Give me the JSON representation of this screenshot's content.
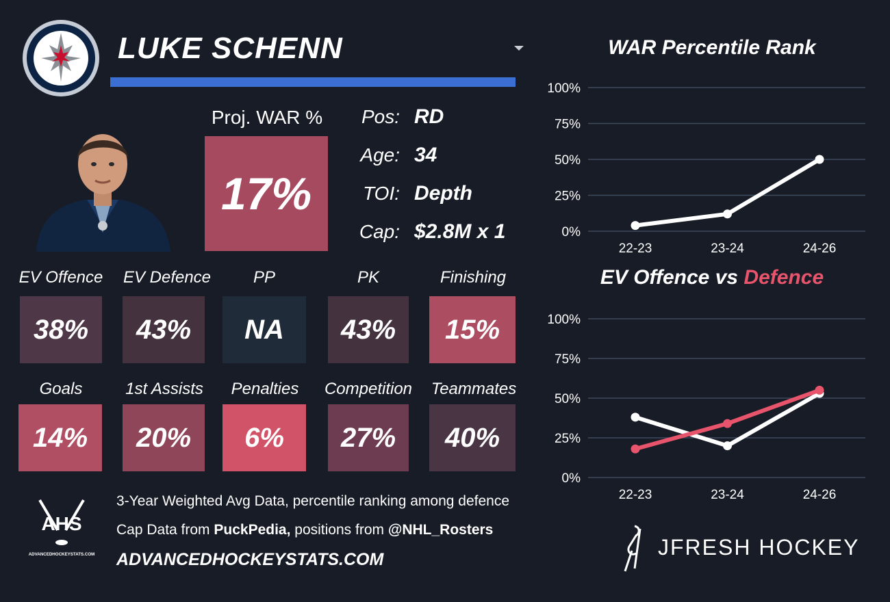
{
  "player": {
    "name": "LUKE SCHENN",
    "proj_war_label": "Proj. WAR %",
    "proj_war_value": "17%",
    "info": [
      {
        "label": "Pos:",
        "value": "RD"
      },
      {
        "label": "Age:",
        "value": "34"
      },
      {
        "label": "TOI:",
        "value": "Depth"
      },
      {
        "label": "Cap:",
        "value": "$2.8M x 1"
      }
    ]
  },
  "stats_row1": [
    {
      "label": "EV Offence",
      "value": "38%",
      "color": "#4e3747"
    },
    {
      "label": "EV Defence",
      "value": "43%",
      "color": "#44333f"
    },
    {
      "label": "PP",
      "value": "NA",
      "color": "#1f2b38"
    },
    {
      "label": "PK",
      "value": "43%",
      "color": "#44333f"
    },
    {
      "label": "Finishing",
      "value": "15%",
      "color": "#ad4d61"
    }
  ],
  "stats_row2": [
    {
      "label": "Goals",
      "value": "14%",
      "color": "#b04e63"
    },
    {
      "label": "1st Assists",
      "value": "20%",
      "color": "#8f4658"
    },
    {
      "label": "Penalties",
      "value": "6%",
      "color": "#d05367"
    },
    {
      "label": "Competition",
      "value": "27%",
      "color": "#6e3c50"
    },
    {
      "label": "Teammates",
      "value": "40%",
      "color": "#4a3545"
    }
  ],
  "footer": {
    "line1": "3-Year Weighted Avg Data, percentile ranking among defence",
    "line2_prefix": "Cap Data from ",
    "line2_source": "PuckPedia,",
    "line2_middle": " positions from ",
    "line2_handle": "@NHL_Rosters",
    "line3": "ADVANCEDHOCKEYSTATS.COM",
    "ahs_logo_text": "AHS",
    "ahs_logo_subtext": "ADVANCEDHOCKEYSTATS.COM",
    "jfresh_text": "JFRESH HOCKEY"
  },
  "colors": {
    "accent_blue": "#3c6fd4",
    "defence_red": "#e8546b",
    "offence_white": "#ffffff",
    "background": "#171c26"
  },
  "chart_data": [
    {
      "type": "line",
      "title": "WAR Percentile Rank",
      "categories": [
        "22-23",
        "23-24",
        "24-26"
      ],
      "series": [
        {
          "values": [
            4,
            12,
            50
          ],
          "color": "#ffffff"
        }
      ],
      "ylim": [
        0,
        100
      ],
      "yticks": [
        "0%",
        "25%",
        "50%",
        "75%",
        "100%"
      ],
      "grid": true
    },
    {
      "type": "line",
      "title_part1": "EV Offence vs ",
      "title_part2": "Defence",
      "categories": [
        "22-23",
        "23-24",
        "24-26"
      ],
      "series": [
        {
          "values": [
            38,
            20,
            53
          ],
          "color": "#ffffff"
        },
        {
          "values": [
            18,
            34,
            55
          ],
          "color": "#e8546b"
        }
      ],
      "ylim": [
        0,
        100
      ],
      "yticks": [
        "0%",
        "25%",
        "50%",
        "75%",
        "100%"
      ],
      "grid": true
    }
  ]
}
